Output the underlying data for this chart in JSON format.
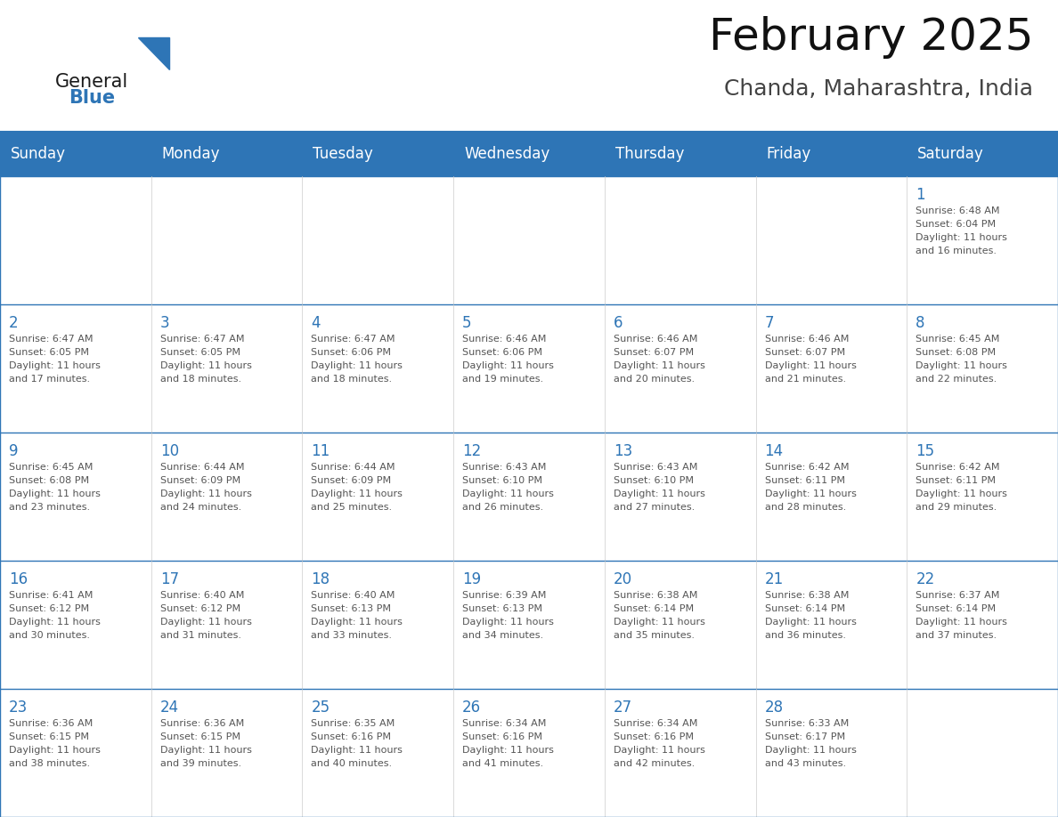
{
  "title": "February 2025",
  "subtitle": "Chanda, Maharashtra, India",
  "header_bg": "#2E75B6",
  "header_text_color": "#FFFFFF",
  "grid_line_color": "#2E75B6",
  "day_number_color": "#2E75B6",
  "info_text_color": "#555555",
  "days_of_week": [
    "Sunday",
    "Monday",
    "Tuesday",
    "Wednesday",
    "Thursday",
    "Friday",
    "Saturday"
  ],
  "calendar_data": [
    [
      null,
      null,
      null,
      null,
      null,
      null,
      {
        "day": "1",
        "sunrise": "6:48 AM",
        "sunset": "6:04 PM",
        "daylight1": "Daylight: 11 hours",
        "daylight2": "and 16 minutes."
      }
    ],
    [
      {
        "day": "2",
        "sunrise": "6:47 AM",
        "sunset": "6:05 PM",
        "daylight1": "Daylight: 11 hours",
        "daylight2": "and 17 minutes."
      },
      {
        "day": "3",
        "sunrise": "6:47 AM",
        "sunset": "6:05 PM",
        "daylight1": "Daylight: 11 hours",
        "daylight2": "and 18 minutes."
      },
      {
        "day": "4",
        "sunrise": "6:47 AM",
        "sunset": "6:06 PM",
        "daylight1": "Daylight: 11 hours",
        "daylight2": "and 18 minutes."
      },
      {
        "day": "5",
        "sunrise": "6:46 AM",
        "sunset": "6:06 PM",
        "daylight1": "Daylight: 11 hours",
        "daylight2": "and 19 minutes."
      },
      {
        "day": "6",
        "sunrise": "6:46 AM",
        "sunset": "6:07 PM",
        "daylight1": "Daylight: 11 hours",
        "daylight2": "and 20 minutes."
      },
      {
        "day": "7",
        "sunrise": "6:46 AM",
        "sunset": "6:07 PM",
        "daylight1": "Daylight: 11 hours",
        "daylight2": "and 21 minutes."
      },
      {
        "day": "8",
        "sunrise": "6:45 AM",
        "sunset": "6:08 PM",
        "daylight1": "Daylight: 11 hours",
        "daylight2": "and 22 minutes."
      }
    ],
    [
      {
        "day": "9",
        "sunrise": "6:45 AM",
        "sunset": "6:08 PM",
        "daylight1": "Daylight: 11 hours",
        "daylight2": "and 23 minutes."
      },
      {
        "day": "10",
        "sunrise": "6:44 AM",
        "sunset": "6:09 PM",
        "daylight1": "Daylight: 11 hours",
        "daylight2": "and 24 minutes."
      },
      {
        "day": "11",
        "sunrise": "6:44 AM",
        "sunset": "6:09 PM",
        "daylight1": "Daylight: 11 hours",
        "daylight2": "and 25 minutes."
      },
      {
        "day": "12",
        "sunrise": "6:43 AM",
        "sunset": "6:10 PM",
        "daylight1": "Daylight: 11 hours",
        "daylight2": "and 26 minutes."
      },
      {
        "day": "13",
        "sunrise": "6:43 AM",
        "sunset": "6:10 PM",
        "daylight1": "Daylight: 11 hours",
        "daylight2": "and 27 minutes."
      },
      {
        "day": "14",
        "sunrise": "6:42 AM",
        "sunset": "6:11 PM",
        "daylight1": "Daylight: 11 hours",
        "daylight2": "and 28 minutes."
      },
      {
        "day": "15",
        "sunrise": "6:42 AM",
        "sunset": "6:11 PM",
        "daylight1": "Daylight: 11 hours",
        "daylight2": "and 29 minutes."
      }
    ],
    [
      {
        "day": "16",
        "sunrise": "6:41 AM",
        "sunset": "6:12 PM",
        "daylight1": "Daylight: 11 hours",
        "daylight2": "and 30 minutes."
      },
      {
        "day": "17",
        "sunrise": "6:40 AM",
        "sunset": "6:12 PM",
        "daylight1": "Daylight: 11 hours",
        "daylight2": "and 31 minutes."
      },
      {
        "day": "18",
        "sunrise": "6:40 AM",
        "sunset": "6:13 PM",
        "daylight1": "Daylight: 11 hours",
        "daylight2": "and 33 minutes."
      },
      {
        "day": "19",
        "sunrise": "6:39 AM",
        "sunset": "6:13 PM",
        "daylight1": "Daylight: 11 hours",
        "daylight2": "and 34 minutes."
      },
      {
        "day": "20",
        "sunrise": "6:38 AM",
        "sunset": "6:14 PM",
        "daylight1": "Daylight: 11 hours",
        "daylight2": "and 35 minutes."
      },
      {
        "day": "21",
        "sunrise": "6:38 AM",
        "sunset": "6:14 PM",
        "daylight1": "Daylight: 11 hours",
        "daylight2": "and 36 minutes."
      },
      {
        "day": "22",
        "sunrise": "6:37 AM",
        "sunset": "6:14 PM",
        "daylight1": "Daylight: 11 hours",
        "daylight2": "and 37 minutes."
      }
    ],
    [
      {
        "day": "23",
        "sunrise": "6:36 AM",
        "sunset": "6:15 PM",
        "daylight1": "Daylight: 11 hours",
        "daylight2": "and 38 minutes."
      },
      {
        "day": "24",
        "sunrise": "6:36 AM",
        "sunset": "6:15 PM",
        "daylight1": "Daylight: 11 hours",
        "daylight2": "and 39 minutes."
      },
      {
        "day": "25",
        "sunrise": "6:35 AM",
        "sunset": "6:16 PM",
        "daylight1": "Daylight: 11 hours",
        "daylight2": "and 40 minutes."
      },
      {
        "day": "26",
        "sunrise": "6:34 AM",
        "sunset": "6:16 PM",
        "daylight1": "Daylight: 11 hours",
        "daylight2": "and 41 minutes."
      },
      {
        "day": "27",
        "sunrise": "6:34 AM",
        "sunset": "6:16 PM",
        "daylight1": "Daylight: 11 hours",
        "daylight2": "and 42 minutes."
      },
      {
        "day": "28",
        "sunrise": "6:33 AM",
        "sunset": "6:17 PM",
        "daylight1": "Daylight: 11 hours",
        "daylight2": "and 43 minutes."
      },
      null
    ]
  ],
  "fig_width": 11.88,
  "fig_height": 9.18,
  "n_rows": 5,
  "n_cols": 7,
  "logo_general_color": "#1a1a1a",
  "logo_blue_color": "#2E75B6",
  "title_color": "#111111",
  "subtitle_color": "#444444"
}
